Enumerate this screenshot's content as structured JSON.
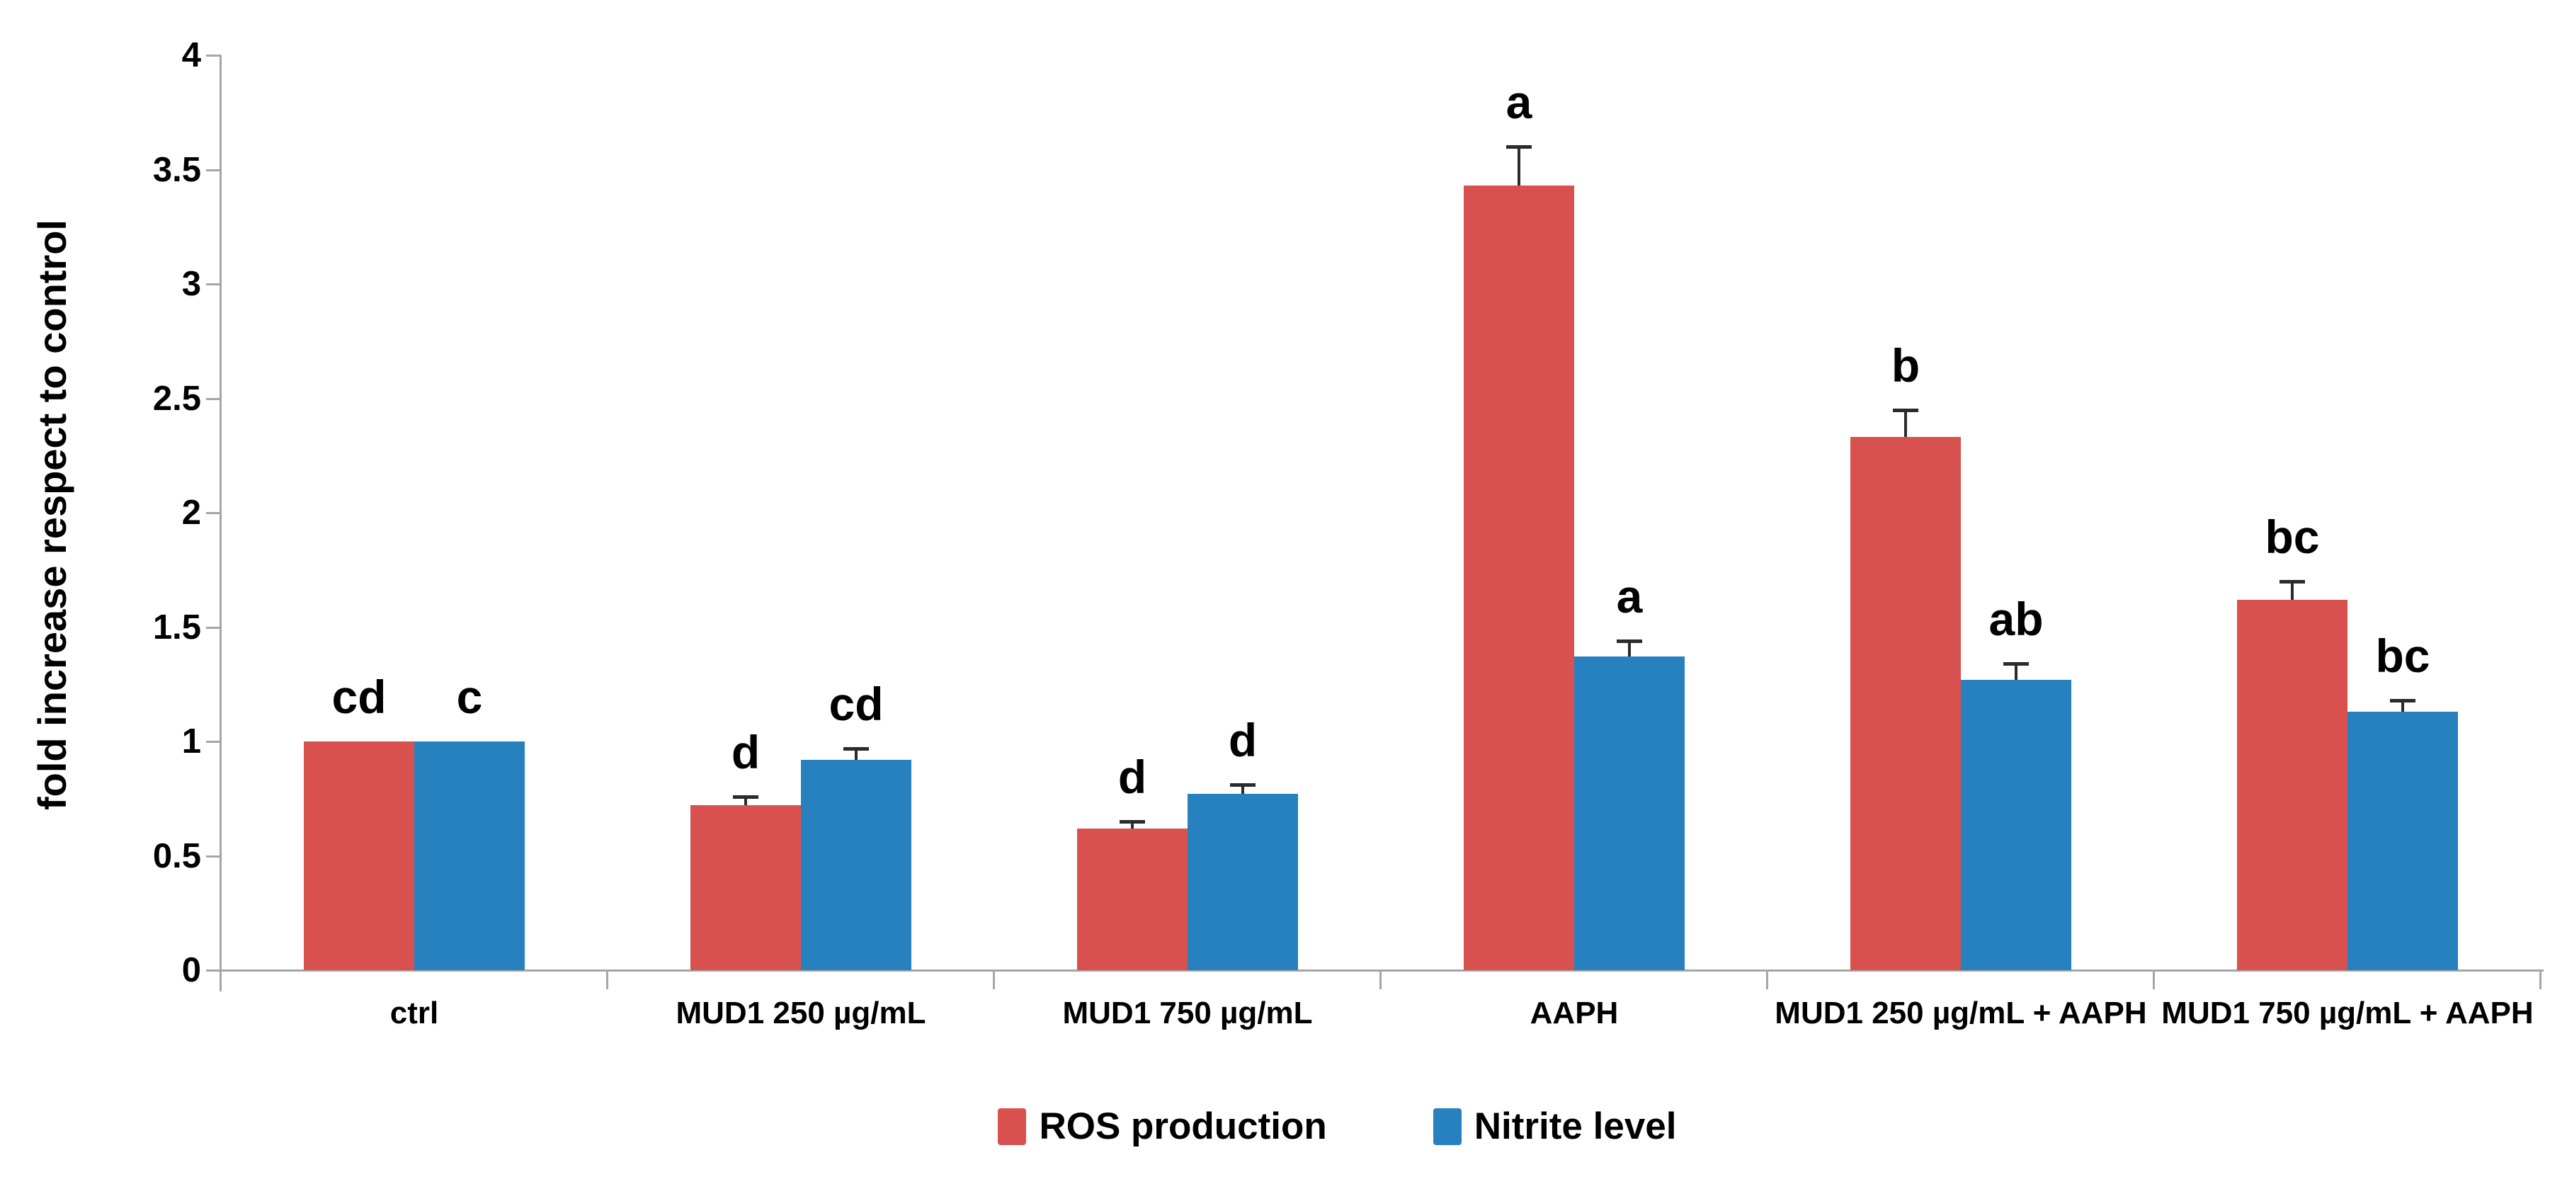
{
  "chart_data": {
    "type": "bar",
    "title": "",
    "xlabel": "",
    "ylabel": "fold increase respect to control",
    "ylim": [
      0,
      4
    ],
    "ytick_step": 0.5,
    "yticks": [
      "0",
      "0.5",
      "1",
      "1.5",
      "2",
      "2.5",
      "3",
      "3.5",
      "4"
    ],
    "grid": false,
    "error_bars": "upper-only",
    "legend_position": "bottom-center",
    "categories": [
      "ctrl",
      "MUD1 250 µg/mL",
      "MUD1 750 µg/mL",
      "AAPH",
      "MUD1 250 µg/mL + AAPH",
      "MUD1 750 µg/mL + AAPH"
    ],
    "series": [
      {
        "name": "ROS production",
        "color": "#d9514e",
        "values": [
          1.0,
          0.72,
          0.62,
          3.43,
          2.33,
          1.62
        ],
        "errors": [
          0,
          0.04,
          0.03,
          0.17,
          0.12,
          0.08
        ],
        "sig_letters": [
          "cd",
          "d",
          "d",
          "a",
          "b",
          "bc"
        ]
      },
      {
        "name": "Nitrite level",
        "color": "#2781bf",
        "values": [
          1.0,
          0.92,
          0.77,
          1.37,
          1.27,
          1.13
        ],
        "errors": [
          0,
          0.05,
          0.04,
          0.07,
          0.07,
          0.05
        ],
        "sig_letters": [
          "c",
          "cd",
          "d",
          "a",
          "ab",
          "bc"
        ]
      }
    ],
    "axis_color": "#a6a6a6",
    "text_color": "#000000"
  }
}
